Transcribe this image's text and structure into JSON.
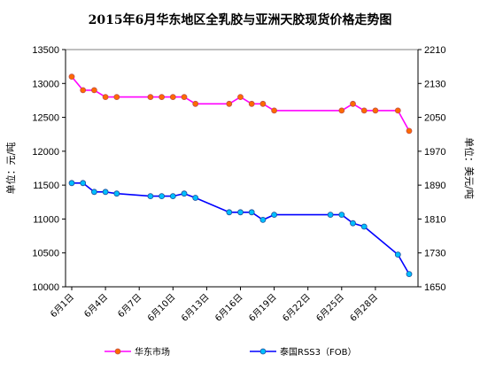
{
  "chart_data": {
    "type": "line",
    "title": "2015年6月华东地区全乳胶与亚洲天胶现货价格走势图",
    "ylabel_left": "单位：元/吨",
    "ylabel_right": "单位：美元/吨",
    "ylim_left": [
      10000,
      13500
    ],
    "ylim_right": [
      1650,
      2210
    ],
    "yticks_left": [
      10000,
      10500,
      11000,
      11500,
      12000,
      12500,
      13000,
      13500
    ],
    "yticks_right": [
      1650,
      1730,
      1810,
      1890,
      1970,
      2050,
      2130,
      2210
    ],
    "x_tick_labels": [
      "6月1日",
      "6月4日",
      "6月7日",
      "6月10日",
      "6月13日",
      "6月16日",
      "6月19日",
      "6月22日",
      "6月25日",
      "6月28日"
    ],
    "x_tick_days": [
      1,
      4,
      7,
      10,
      13,
      16,
      19,
      22,
      25,
      28
    ],
    "x_range_days": [
      1,
      31
    ],
    "grid": false,
    "legend_position": "bottom",
    "series": [
      {
        "name": "华东市场",
        "axis": "left",
        "color": "#ff00ff",
        "marker_color": "#ff6a00",
        "x": [
          1,
          2,
          3,
          4,
          5,
          8,
          9,
          10,
          11,
          12,
          15,
          16,
          17,
          18,
          19,
          25,
          26,
          27,
          28,
          30,
          31
        ],
        "values": [
          13100,
          12900,
          12900,
          12800,
          12800,
          12800,
          12800,
          12800,
          12800,
          12700,
          12700,
          12800,
          12700,
          12700,
          12600,
          12600,
          12700,
          12600,
          12600,
          12600,
          12300
        ]
      },
      {
        "name": "泰国RSS3（FOB）",
        "axis": "right",
        "color": "#0000ff",
        "marker_color": "#00bfff",
        "x": [
          1,
          2,
          3,
          4,
          5,
          8,
          9,
          10,
          11,
          12,
          15,
          16,
          17,
          18,
          19,
          24,
          25,
          26,
          27,
          30,
          31
        ],
        "values": [
          1895,
          1895,
          1874,
          1874,
          1870,
          1864,
          1864,
          1864,
          1870,
          1860,
          1826,
          1826,
          1826,
          1808,
          1820,
          1820,
          1820,
          1800,
          1792,
          1726,
          1680
        ]
      }
    ]
  }
}
